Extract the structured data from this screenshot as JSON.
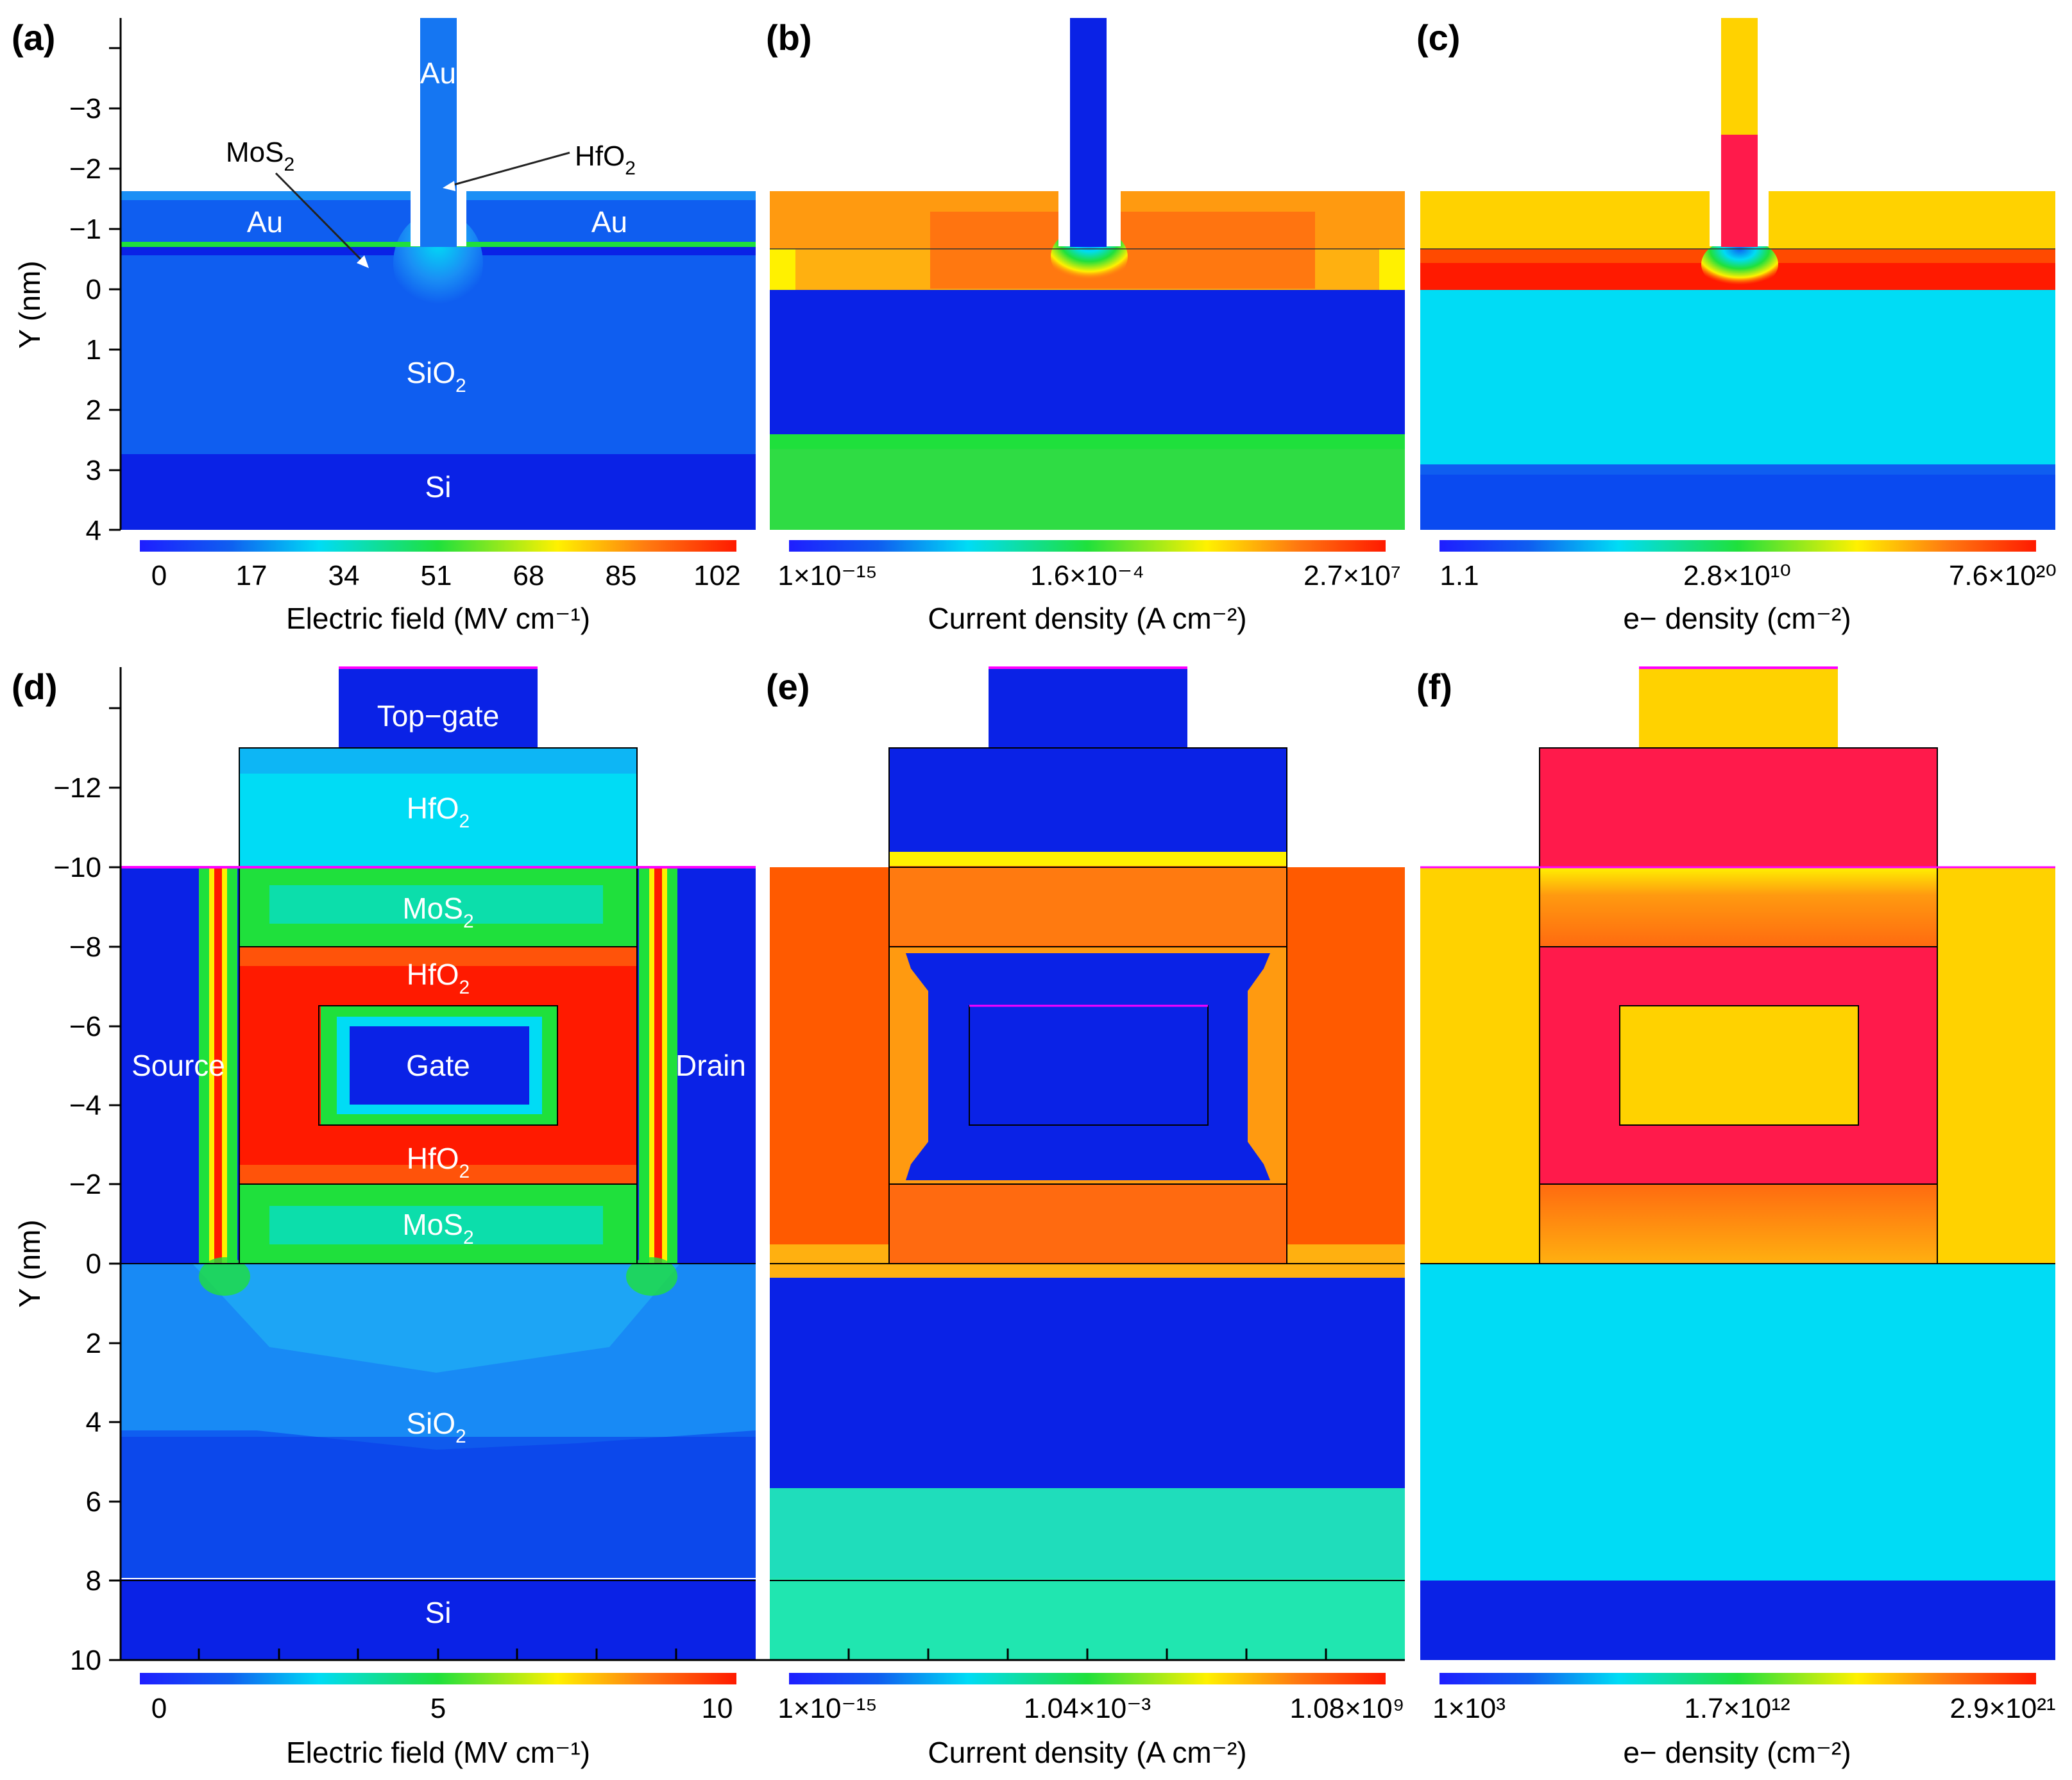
{
  "panels": [
    {
      "id": "a",
      "label": "(a)"
    },
    {
      "id": "b",
      "label": "(b)"
    },
    {
      "id": "c",
      "label": "(c)"
    },
    {
      "id": "d",
      "label": "(d)"
    },
    {
      "id": "e",
      "label": "(e)"
    },
    {
      "id": "f",
      "label": "(f)"
    }
  ],
  "axes": {
    "y_label": "Y (nm)",
    "top_row_y_ticks": [
      "−3",
      "−2",
      "−1",
      "0",
      "1",
      "2",
      "3",
      "4"
    ],
    "bottom_row_y_ticks": [
      "−12",
      "−10",
      "−8",
      "−6",
      "−4",
      "−2",
      "0",
      "2",
      "4",
      "6",
      "8",
      "10"
    ]
  },
  "regions_top": {
    "au_top": "Au",
    "au_left": "Au",
    "au_right": "Au",
    "sio2_main": "SiO",
    "sio2_sub": "2",
    "si": "Si",
    "mos2_main": "MoS",
    "mos2_sub": "2",
    "hfo2_main": "HfO",
    "hfo2_sub": "2"
  },
  "regions_bottom": {
    "top_gate": "Top−gate",
    "hfo2_top_main": "HfO",
    "hfo2_top_sub": "2",
    "mos2_top_main": "MoS",
    "mos2_top_sub": "2",
    "hfo2_mid_main": "HfO",
    "hfo2_mid_sub": "2",
    "gate": "Gate",
    "source": "Source",
    "drain": "Drain",
    "hfo2_low_main": "HfO",
    "hfo2_low_sub": "2",
    "mos2_low_main": "MoS",
    "mos2_low_sub": "2",
    "sio2_main": "SiO",
    "sio2_sub": "2",
    "si": "Si"
  },
  "colorbars": {
    "a": {
      "title": "Electric field (MV cm⁻¹)",
      "ticks": [
        "0",
        "17",
        "34",
        "51",
        "68",
        "85",
        "102"
      ]
    },
    "b": {
      "title": "Current density (A cm⁻²)",
      "ticks": [
        "1×10⁻¹⁵",
        "1.6×10⁻⁴",
        "2.7×10⁷"
      ]
    },
    "c": {
      "title": "e− density (cm⁻²)",
      "ticks": [
        "1.1",
        "2.8×10¹⁰",
        "7.6×10²⁰"
      ]
    },
    "d": {
      "title": "Electric field (MV cm⁻¹)",
      "ticks": [
        "0",
        "5",
        "10"
      ]
    },
    "e": {
      "title": "Current density (A cm⁻²)",
      "ticks": [
        "1×10⁻¹⁵",
        "1.04×10⁻³",
        "1.08×10⁹"
      ]
    },
    "f": {
      "title": "e− density (cm⁻²)",
      "ticks": [
        "1×10³",
        "1.7×10¹²",
        "2.9×10²¹"
      ]
    }
  },
  "colors": {
    "deep_blue": "#0a22e6",
    "mid_blue": "#0f5ef0",
    "light_blue": "#1a8ff5",
    "cyan": "#00dcf5",
    "teal": "#20e6b0",
    "green": "#1fe03c",
    "yellow": "#fff100",
    "gold": "#ffd200",
    "orange": "#ff7a10",
    "red_orange": "#ff4a00",
    "red": "#ff1a00",
    "crimson": "#ff1a4b",
    "magenta": "#ff00ff"
  }
}
